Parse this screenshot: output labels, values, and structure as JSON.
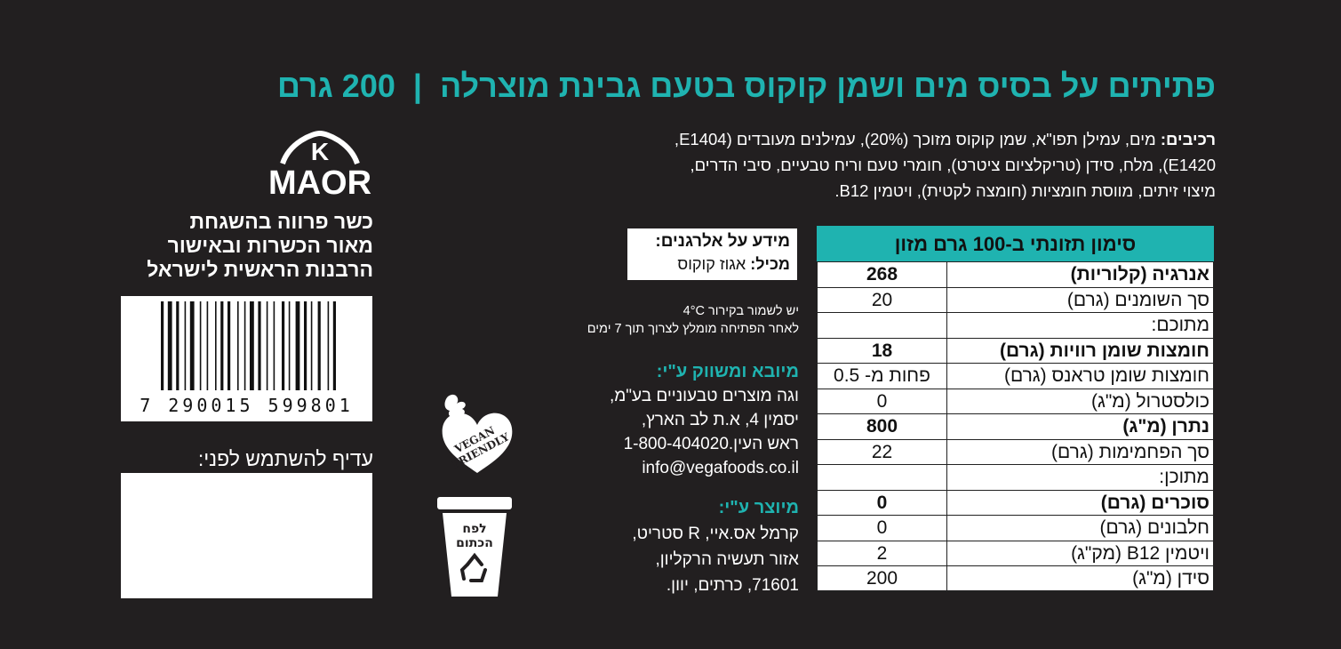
{
  "title": {
    "product": "פתיתים על בסיס מים ושמן קוקוס בטעם גבינת מוצרלה",
    "separator": "|",
    "weight": "200 גרם"
  },
  "ingredients": {
    "label": "רכיבים:",
    "line1": "מים, עמילן תפו\"א, שמן קוקוס מזוכך (20%), עמילנים מעובדים (E1404,",
    "line2": "E1420), מלח, סידן (טריקלציום ציטרט), חומרי טעם וריח טבעיים, סיבי הדרים,",
    "line3": "מיצוי זיתים, מווסת חומציות (חומצה לקטית), ויטמין B12."
  },
  "nutrition": {
    "header": "סימון תזונתי ב-100 גרם מזון",
    "rows": [
      {
        "label": "אנרגיה (קלוריות)",
        "value": "268",
        "bold": true
      },
      {
        "label": "סך השומנים (גרם)",
        "value": "20",
        "bold": false
      },
      {
        "label": "מתוכם:",
        "value": "",
        "bold": false
      },
      {
        "label": "חומצות שומן רוויות (גרם)",
        "value": "18",
        "bold": true
      },
      {
        "label": "חומצות שומן טראנס (גרם)",
        "value": "פחות מ- 0.5",
        "bold": false
      },
      {
        "label": "כולסטרול (מ\"ג)",
        "value": "0",
        "bold": false
      },
      {
        "label": "נתרן (מ\"ג)",
        "value": "800",
        "bold": true
      },
      {
        "label": "סך הפחמימות (גרם)",
        "value": "22",
        "bold": false
      },
      {
        "label": "מתוכן:",
        "value": "",
        "bold": false
      },
      {
        "label": "סוכרים (גרם)",
        "value": "0",
        "bold": true
      },
      {
        "label": "חלבונים (גרם)",
        "value": "0",
        "bold": false
      },
      {
        "label": "ויטמין B12 (מק\"ג)",
        "value": "2",
        "bold": false
      },
      {
        "label": "סידן (מ\"ג)",
        "value": "200",
        "bold": false
      }
    ]
  },
  "allergens": {
    "title": "מידע על אלרגנים:",
    "contains_label": "מכיל:",
    "contains_value": "אגוז קוקוס"
  },
  "storage": {
    "line1": "יש לשמור בקירור 4°C",
    "line2": "לאחר הפתיחה מומלץ לצרוך תוך 7 ימים"
  },
  "importer": {
    "title": "מיובא ומשווק ע\"י:",
    "line1": "וגה מוצרים טבעוניים בע\"מ,",
    "line2": "יסמין 4, א.ת לב הארץ,",
    "line3": "ראש העין.1-800-404020",
    "email": "info@vegafoods.co.il"
  },
  "manufacturer": {
    "title": "מיוצר ע\"י:",
    "line1": "קרמל אס.איי, R סטריט,",
    "line2": "אזור תעשיה הרקליון,",
    "line3": "71601, כרתים, יוון."
  },
  "vegan_badge": {
    "line1": "VEGAN",
    "line2": "FRIENDLY",
    "icon": "vegan-heart-icon"
  },
  "recycle_bin": {
    "line1": "לפח",
    "line2": "הכתום",
    "icon": "recycle-icon"
  },
  "kosher": {
    "logo_k": "K",
    "logo_word": "MAOR",
    "line1": "כשר פרווה בהשגחת",
    "line2": "מאור הכשרות ובאישור",
    "line3": "הרבנות הראשית לישראל"
  },
  "barcode": {
    "digits": "7 290015 599801"
  },
  "best_before": {
    "label": "עדיף להשתמש לפני:",
    "value": ""
  },
  "colors": {
    "background": "#221f20",
    "accent": "#1fb3b0",
    "panel": "#ffffff"
  }
}
